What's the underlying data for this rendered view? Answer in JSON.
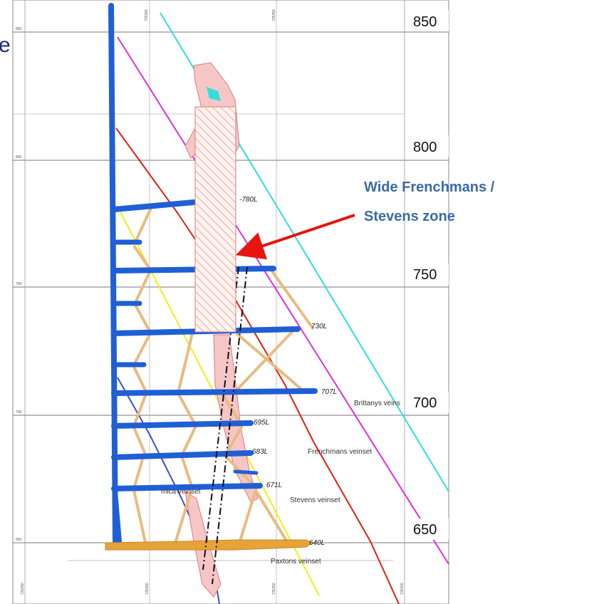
{
  "title_fragment": "e",
  "rl_labels": [
    "850",
    "800",
    "750",
    "700",
    "650"
  ],
  "callout": {
    "line1": "Wide Frenchmans /",
    "line2": "Stevens zone",
    "color": "#3b6aa3",
    "arrow_color": "#e8140e"
  },
  "levels": [
    "-780L",
    "730L",
    "707L",
    "695L",
    "683L",
    "671L",
    "640L"
  ],
  "veinsets": {
    "brittanys": "Brittanys veins",
    "frenchmans": "Frenchmans veinset",
    "stevens": "Stevens veinset",
    "mica": "mica veinset",
    "paxtons": "Paxtons veinset"
  },
  "easting_labels": {
    "top": [
      "725300",
      "725350"
    ],
    "bottom": [
      "725250",
      "725300",
      "725350",
      "725400"
    ]
  },
  "grid_edge_labels": [
    "850",
    "800",
    "750",
    "700",
    "650"
  ],
  "colors": {
    "development": "#1f5fd6",
    "raise": "#e8bb80",
    "decline": "#e6a33a",
    "brittanys": "#2de0dc",
    "frenchmans_magenta": "#e02ee0",
    "frenchmans_red": "#e02010",
    "stevens_yellow": "#f2ee18",
    "mica_blue": "#3a4fc9",
    "stope_fill": "#f6c6c6"
  }
}
